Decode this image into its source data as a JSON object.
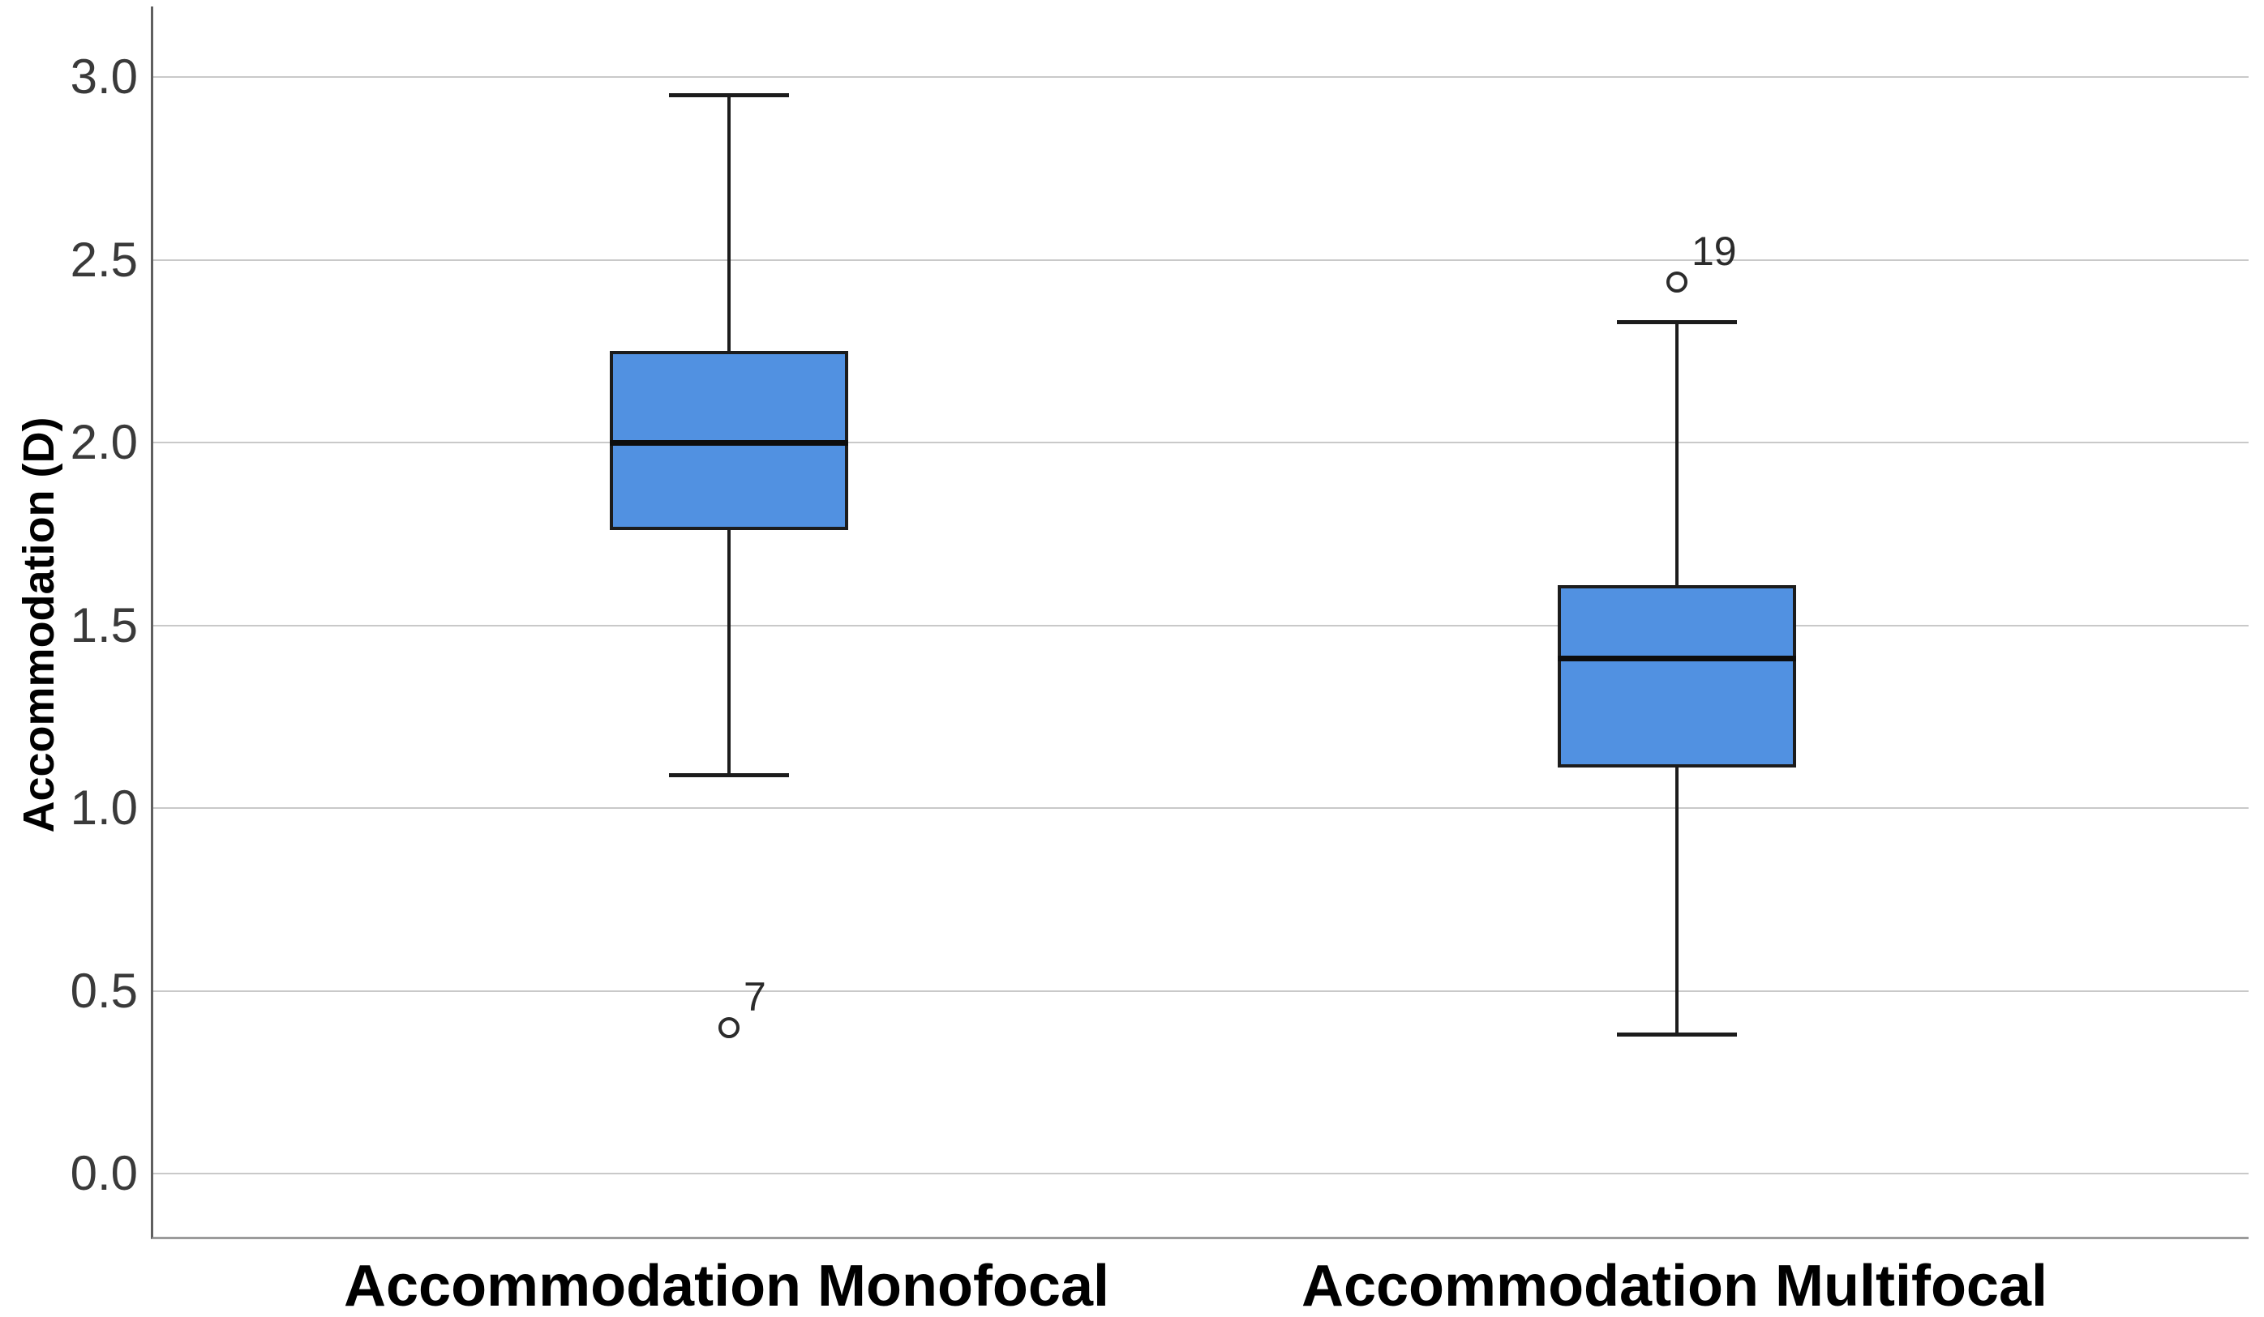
{
  "chart_data": {
    "type": "box",
    "title": "",
    "xlabel": "",
    "ylabel": "Accommodation (D)",
    "categories": [
      "Accommodation Monofocal",
      "Accommodation Multifocal"
    ],
    "y_ticks": [
      "3.0",
      "2.5",
      "2.0",
      "1.5",
      "1.0",
      "0.5",
      "0.0"
    ],
    "y_tick_values": [
      3.0,
      2.5,
      2.0,
      1.5,
      1.0,
      0.5,
      0.0
    ],
    "ylim": [
      -0.18,
      3.19
    ],
    "grid": true,
    "legend": "none",
    "series": [
      {
        "name": "Accommodation Monofocal",
        "whisker_low": 1.09,
        "q1": 1.76,
        "median": 2.0,
        "q3": 2.25,
        "whisker_high": 2.95,
        "outliers": [
          {
            "value": 0.4,
            "label": "7"
          }
        ]
      },
      {
        "name": "Accommodation Multifocal",
        "whisker_low": 0.38,
        "q1": 1.11,
        "median": 1.41,
        "q3": 1.61,
        "whisker_high": 2.33,
        "outliers": [
          {
            "value": 2.44,
            "label": "19"
          }
        ]
      }
    ],
    "colors": {
      "background": "#ffffff",
      "box_fill": "#5191e1",
      "box_border": "#1c1c1c",
      "median_line": "#0d0d0d",
      "whisker": "#1c1c1c",
      "gridline": "#c9c9c9",
      "axis_line_left": "#5f5f5f",
      "axis_line_bottom": "#9b9b9b",
      "tick_text": "#3a3a3a",
      "label_text": "#000000",
      "outlier_stroke": "#2b2b2b"
    }
  }
}
